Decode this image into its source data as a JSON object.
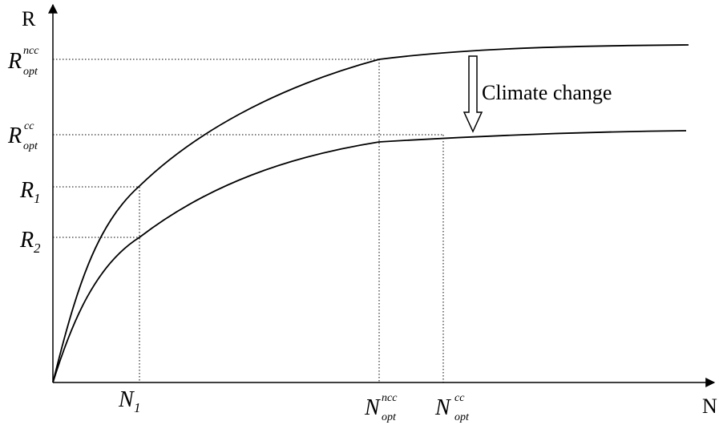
{
  "axes": {
    "y_label": "R",
    "x_label": "N"
  },
  "y_markers": {
    "r_opt_ncc": {
      "main": "R",
      "sup": "ncc",
      "sub": "opt"
    },
    "r_opt_cc": {
      "main": "R",
      "sup": "cc",
      "sub": "opt"
    },
    "r1": {
      "main": "R",
      "sub": "1"
    },
    "r2": {
      "main": "R",
      "sub": "2"
    }
  },
  "x_markers": {
    "n1": {
      "main": "N",
      "sub": "1"
    },
    "n_opt_ncc": {
      "main": "N",
      "sup": "ncc",
      "sub": "opt"
    },
    "n_opt_cc": {
      "main": "N",
      "sup": "cc",
      "sub": "opt"
    }
  },
  "annotation": {
    "text": "Climate change"
  },
  "curves": {
    "upper": "without climate change",
    "lower": "with climate change"
  },
  "colors": {
    "line": "#000000",
    "background": "#ffffff"
  }
}
